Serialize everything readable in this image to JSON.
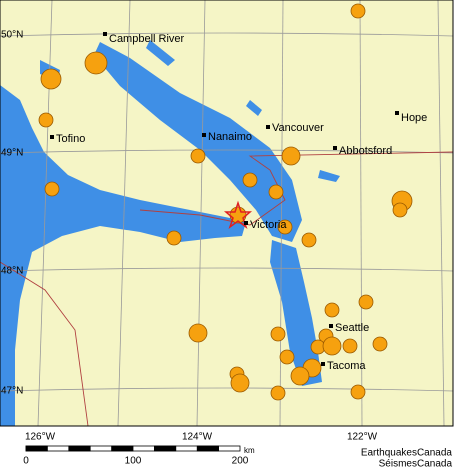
{
  "cities": [
    "Campbell River",
    "Tofino",
    "Nanaimo",
    "Vancouver",
    "Hope",
    "Abbotsford",
    "Victoria",
    "Seattle",
    "Tacoma"
  ],
  "lat_labels": [
    "50°N",
    "49°N",
    "48°N",
    "47°N"
  ],
  "lon_labels": [
    "126°W",
    "124°W",
    "122°W"
  ],
  "scale": {
    "ticks": [
      "0",
      "100",
      "200"
    ],
    "unit": "km"
  },
  "credit": [
    "EarthquakesCanada",
    "SéismesCanada"
  ]
}
